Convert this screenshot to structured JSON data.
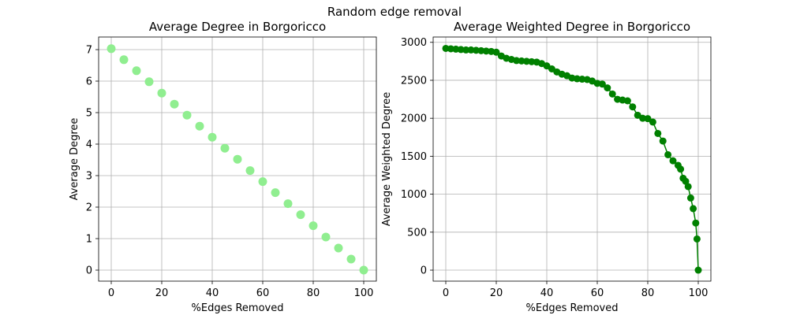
{
  "figure": {
    "suptitle": "Random edge removal"
  },
  "chart_data": [
    {
      "type": "scatter",
      "title": "Average Degree in Borgoricco",
      "xlabel": "%Edges Removed",
      "ylabel": "Average Degree",
      "xlim": [
        -5,
        105
      ],
      "ylim": [
        -0.35,
        7.4
      ],
      "xticks": [
        "0",
        "20",
        "40",
        "60",
        "80",
        "100"
      ],
      "xtick_values": [
        0,
        20,
        40,
        60,
        80,
        100
      ],
      "yticks": [
        "0",
        "1",
        "2",
        "3",
        "4",
        "5",
        "6",
        "7"
      ],
      "ytick_values": [
        0,
        1,
        2,
        3,
        4,
        5,
        6,
        7
      ],
      "grid": true,
      "color": "#90ee90",
      "series": [
        {
          "x": [
            0,
            5,
            10,
            15,
            20,
            25,
            30,
            35,
            40,
            45,
            50,
            55,
            60,
            65,
            70,
            75,
            80,
            85,
            90,
            95,
            100
          ],
          "y": [
            7.03,
            6.68,
            6.33,
            5.98,
            5.62,
            5.27,
            4.92,
            4.57,
            4.22,
            3.87,
            3.52,
            3.16,
            2.81,
            2.46,
            2.11,
            1.76,
            1.41,
            1.05,
            0.7,
            0.35,
            0.0
          ]
        }
      ]
    },
    {
      "type": "line",
      "title": "Average Weighted Degree in Borgoricco",
      "xlabel": "%Edges Removed",
      "ylabel": "Average Weighted Degree",
      "xlim": [
        -5,
        105
      ],
      "ylim": [
        -145,
        3070
      ],
      "xticks": [
        "0",
        "20",
        "40",
        "60",
        "80",
        "100"
      ],
      "xtick_values": [
        0,
        20,
        40,
        60,
        80,
        100
      ],
      "yticks": [
        "0",
        "500",
        "1000",
        "1500",
        "2000",
        "2500",
        "3000"
      ],
      "ytick_values": [
        0,
        500,
        1000,
        1500,
        2000,
        2500,
        3000
      ],
      "grid": true,
      "color": "#008000",
      "series": [
        {
          "x": [
            0,
            2,
            4,
            6,
            8,
            10,
            12,
            14,
            16,
            18,
            20,
            22,
            24,
            26,
            28,
            30,
            32,
            34,
            36,
            38,
            40,
            42,
            44,
            46,
            48,
            50,
            52,
            54,
            56,
            58,
            60,
            62,
            64,
            66,
            68,
            70,
            72,
            74,
            76,
            78,
            80,
            82,
            84,
            86,
            88,
            90,
            92,
            93,
            94,
            95,
            96,
            97,
            98,
            99,
            99.5,
            100
          ],
          "y": [
            2920,
            2915,
            2910,
            2905,
            2900,
            2900,
            2895,
            2890,
            2885,
            2880,
            2870,
            2820,
            2790,
            2775,
            2760,
            2755,
            2750,
            2745,
            2740,
            2720,
            2690,
            2650,
            2610,
            2580,
            2560,
            2530,
            2520,
            2515,
            2510,
            2490,
            2460,
            2450,
            2400,
            2320,
            2250,
            2240,
            2230,
            2150,
            2040,
            2000,
            1995,
            1950,
            1800,
            1700,
            1520,
            1440,
            1380,
            1330,
            1210,
            1170,
            1100,
            950,
            810,
            620,
            410,
            0
          ]
        }
      ]
    }
  ]
}
